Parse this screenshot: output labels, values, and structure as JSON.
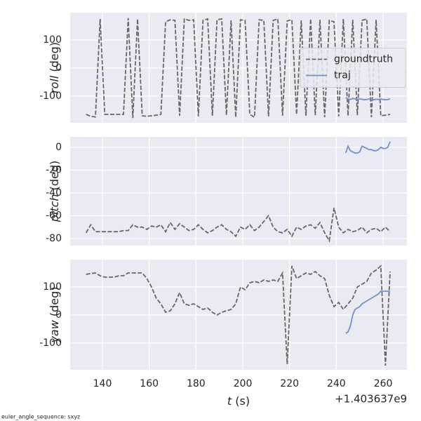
{
  "chart_data": [
    {
      "type": "line",
      "ylabel": [
        "roll",
        "(deg)"
      ],
      "xlim": [
        126.2,
        270.2
      ],
      "ylim": [
        -195,
        197.5
      ],
      "xticks": [
        140,
        160,
        180,
        200,
        220,
        240,
        260
      ],
      "yticks": [
        -100,
        0,
        100
      ],
      "grid": true,
      "legend": "center right",
      "series": [
        {
          "name": "groundtruth",
          "color": "#666666",
          "dashed": true,
          "x": [
            133,
            135,
            137,
            139,
            141,
            143,
            145,
            147,
            149,
            151,
            153,
            155,
            157,
            159,
            161,
            163,
            165,
            167,
            169,
            171,
            173,
            175,
            177,
            179,
            181,
            183,
            185,
            187,
            189,
            191,
            193,
            195,
            197,
            199,
            201,
            203,
            205,
            207,
            209,
            211,
            213,
            215,
            217,
            219,
            221,
            223,
            225,
            227,
            229,
            231,
            233,
            235,
            237,
            239,
            241,
            243,
            245,
            247,
            249,
            251,
            253,
            255,
            257,
            259,
            261,
            263
          ],
          "values": [
            -165,
            -172,
            -174,
            175,
            -165,
            -165,
            -165,
            -165,
            -165,
            178,
            -178,
            175,
            -170,
            -172,
            -170,
            -168,
            -165,
            165,
            172,
            170,
            -170,
            175,
            170,
            172,
            -172,
            170,
            175,
            -170,
            172,
            175,
            -168,
            170,
            -175,
            172,
            170,
            -165,
            -175,
            172,
            170,
            -172,
            170,
            175,
            -170,
            168,
            172,
            -165,
            170,
            -170,
            175,
            -168,
            172,
            -175,
            170,
            165,
            -172,
            175,
            -170,
            172,
            -168,
            170,
            175,
            -175,
            172,
            -170,
            -168,
            -165
          ]
        },
        {
          "name": "traj",
          "color": "#7092c8",
          "dashed": false,
          "x": [
            244,
            245,
            246,
            247,
            248,
            249,
            250,
            251,
            252,
            253,
            254,
            255,
            256,
            257,
            258,
            259,
            260,
            261,
            262,
            263
          ],
          "values": [
            -105,
            -110,
            -112,
            -108,
            -110,
            -112,
            -110,
            -111,
            -113,
            -112,
            -110,
            -112,
            -113,
            -111,
            -112,
            -110,
            -112,
            -113,
            -112,
            -110
          ]
        }
      ]
    },
    {
      "type": "line",
      "ylabel": [
        "pitch",
        "(deg)"
      ],
      "xlim": [
        126.2,
        270.2
      ],
      "ylim": [
        -86.2,
        9.2
      ],
      "xticks": [
        140,
        160,
        180,
        200,
        220,
        240,
        260
      ],
      "yticks": [
        -80,
        -60,
        -40,
        -20,
        0
      ],
      "grid": true,
      "series": [
        {
          "color": "#666666",
          "dashed": true,
          "x": [
            133,
            135,
            137,
            139,
            141,
            143,
            145,
            147,
            149,
            151,
            153,
            155,
            157,
            159,
            161,
            163,
            165,
            167,
            169,
            171,
            173,
            175,
            177,
            179,
            181,
            183,
            185,
            187,
            189,
            191,
            193,
            195,
            197,
            199,
            201,
            203,
            205,
            207,
            209,
            211,
            213,
            215,
            217,
            219,
            221,
            223,
            225,
            227,
            229,
            231,
            233,
            235,
            237,
            239,
            241,
            243,
            245,
            247,
            249,
            251,
            253,
            255,
            257,
            259,
            261,
            263
          ],
          "values": [
            -75,
            -68,
            -74,
            -74,
            -74,
            -74,
            -74,
            -74,
            -73,
            -73,
            -68,
            -70,
            -70,
            -72,
            -69,
            -70,
            -68,
            -74,
            -66,
            -72,
            -67,
            -70,
            -73,
            -72,
            -68,
            -72,
            -75,
            -73,
            -70,
            -68,
            -72,
            -74,
            -78,
            -70,
            -72,
            -68,
            -73,
            -70,
            -65,
            -60,
            -70,
            -74,
            -75,
            -72,
            -78,
            -70,
            -72,
            -69,
            -68,
            -71,
            -66,
            -75,
            -82,
            -53,
            -70,
            -75,
            -72,
            -74,
            -73,
            -70,
            -75,
            -72,
            -71,
            -74,
            -70,
            -74
          ]
        },
        {
          "color": "#7092c8",
          "dashed": false,
          "x": [
            244,
            245,
            246,
            247,
            248,
            249,
            250,
            251,
            252,
            253,
            254,
            255,
            256,
            257,
            258,
            259,
            260,
            261,
            262,
            263
          ],
          "values": [
            -5,
            1,
            -3,
            -4,
            -5,
            -5,
            -4,
            1,
            0,
            -1,
            -2,
            -2,
            -3,
            -3,
            -2,
            0,
            -1,
            -1,
            0,
            5
          ]
        }
      ]
    },
    {
      "type": "line",
      "ylabel": [
        "yaw",
        "(deg)"
      ],
      "xlabel": [
        "t",
        "(s)"
      ],
      "offset": "+1.403637e9",
      "xlim": [
        126.2,
        270.2
      ],
      "ylim": [
        -195,
        197.5
      ],
      "xticks": [
        140,
        160,
        180,
        200,
        220,
        240,
        260
      ],
      "yticks": [
        -100,
        0,
        100
      ],
      "grid": true,
      "series": [
        {
          "color": "#666666",
          "dashed": true,
          "x": [
            133,
            135,
            137,
            139,
            141,
            143,
            145,
            147,
            149,
            151,
            153,
            155,
            157,
            159,
            161,
            163,
            165,
            167,
            169,
            171,
            173,
            175,
            177,
            179,
            181,
            183,
            185,
            187,
            189,
            191,
            193,
            195,
            197,
            199,
            201,
            203,
            205,
            207,
            209,
            211,
            213,
            215,
            217,
            219,
            221,
            223,
            225,
            227,
            229,
            231,
            233,
            235,
            237,
            239,
            241,
            243,
            245,
            247,
            249,
            251,
            253,
            255,
            257,
            259,
            261,
            263
          ],
          "values": [
            145,
            148,
            150,
            140,
            135,
            135,
            135,
            140,
            140,
            150,
            150,
            150,
            150,
            130,
            100,
            60,
            40,
            10,
            15,
            40,
            80,
            40,
            35,
            40,
            30,
            20,
            25,
            10,
            0,
            10,
            15,
            20,
            40,
            100,
            90,
            115,
            120,
            115,
            125,
            120,
            125,
            120,
            150,
            -175,
            175,
            130,
            140,
            150,
            145,
            155,
            140,
            130,
            70,
            30,
            45,
            20,
            40,
            60,
            100,
            110,
            120,
            150,
            160,
            175,
            -180,
            155
          ]
        },
        {
          "color": "#7092c8",
          "dashed": false,
          "x": [
            244,
            245,
            246,
            247,
            248,
            249,
            250,
            251,
            252,
            253,
            254,
            255,
            256,
            257,
            258,
            259,
            260,
            261,
            262,
            263
          ],
          "values": [
            -65,
            -60,
            -40,
            0,
            20,
            25,
            30,
            40,
            45,
            50,
            55,
            60,
            65,
            70,
            75,
            85,
            85,
            85,
            85,
            83
          ]
        }
      ]
    }
  ],
  "footnote": "euler_angle_sequence: sxyz"
}
